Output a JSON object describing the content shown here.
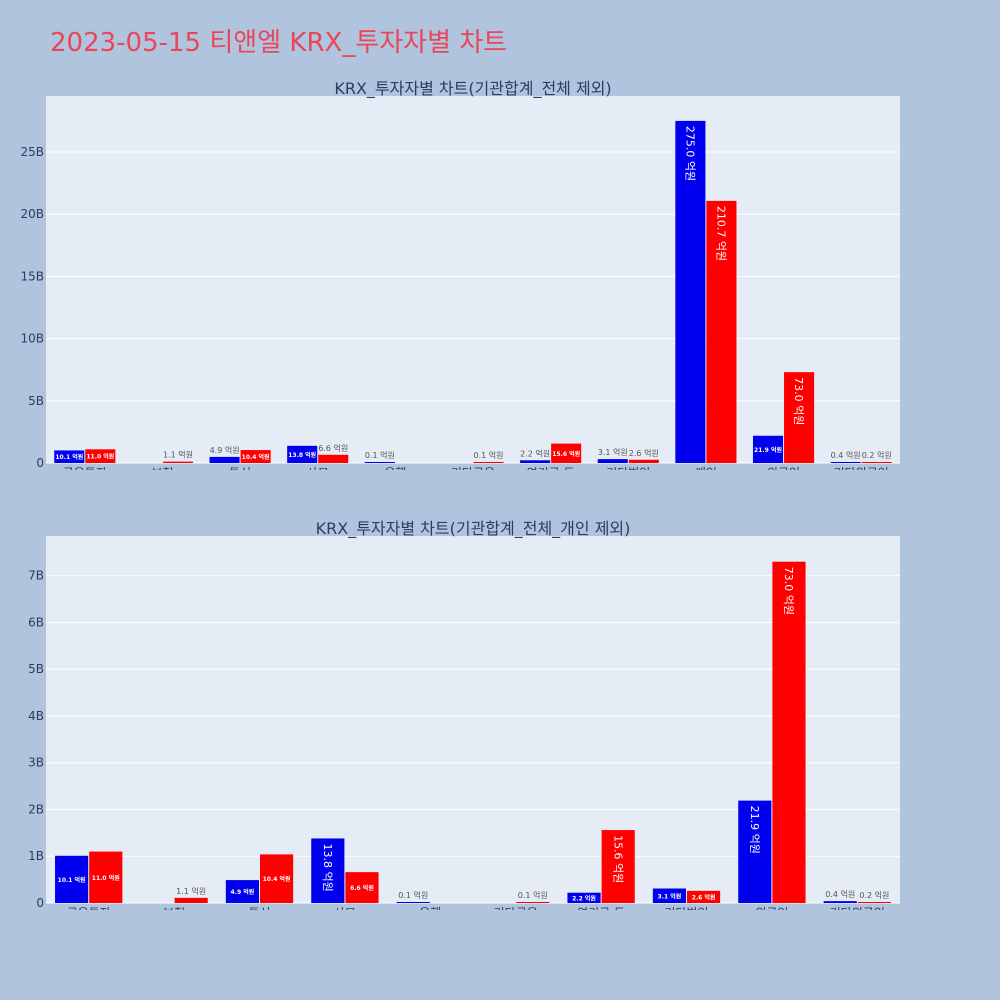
{
  "page_title": "2023-05-15 티앤엘 KRX_투자자별 차트",
  "colors": {
    "series_a": "#0000ee",
    "series_b": "#ff0000",
    "plot_bg": "#e5ecf6",
    "page_bg": "#b0c4de",
    "title": "#e8475a"
  },
  "chart_data": [
    {
      "type": "bar",
      "title": "KRX_투자자별 차트(기관합계_전체 제외)",
      "categories": [
        "금융투자",
        "보험",
        "투신",
        "사모",
        "은행",
        "기타금융",
        "연기금 등",
        "기타법인",
        "개인",
        "외국인",
        "기타외국인"
      ],
      "series": [
        {
          "values": [
            1010000000,
            0,
            490000000,
            1380000000,
            10000000,
            0,
            220000000,
            310000000,
            27500000000,
            2190000000,
            40000000
          ],
          "labels": [
            "10.1 억원",
            "",
            "4.9 억원",
            "13.8 억원",
            "0.1 억원",
            "",
            "2.2 억원",
            "3.1 억원",
            "275.0 억원",
            "21.9 억원",
            "0.4 억원"
          ]
        },
        {
          "values": [
            1100000000,
            110000000,
            1040000000,
            660000000,
            0,
            10000000,
            1560000000,
            260000000,
            21070000000,
            7300000000,
            20000000
          ],
          "labels": [
            "11.0 억원",
            "1.1 억원",
            "10.4 억원",
            "6.6 억원",
            "",
            "0.1 억원",
            "15.6 억원",
            "2.6 억원",
            "210.7 억원",
            "73.0 억원",
            "0.2 억원"
          ]
        }
      ],
      "ylim": [
        0,
        29500000000
      ],
      "yticks": [
        0,
        5000000000,
        10000000000,
        15000000000,
        20000000000,
        25000000000
      ],
      "ytick_labels": [
        "0",
        "5B",
        "10B",
        "15B",
        "20B",
        "25B"
      ],
      "grid": true
    },
    {
      "type": "bar",
      "title": "KRX_투자자별 차트(기관합계_전체_개인 제외)",
      "categories": [
        "금융투자",
        "보험",
        "투신",
        "사모",
        "은행",
        "기타금융",
        "연기금 등",
        "기타법인",
        "외국인",
        "기타외국인"
      ],
      "series": [
        {
          "values": [
            1010000000,
            0,
            490000000,
            1380000000,
            10000000,
            0,
            220000000,
            310000000,
            2190000000,
            40000000
          ],
          "labels": [
            "10.1 억원",
            "",
            "4.9 억원",
            "13.8 억원",
            "0.1 억원",
            "",
            "2.2 억원",
            "3.1 억원",
            "21.9 억원",
            "0.4 억원"
          ]
        },
        {
          "values": [
            1100000000,
            110000000,
            1040000000,
            660000000,
            0,
            10000000,
            1560000000,
            260000000,
            7300000000,
            20000000
          ],
          "labels": [
            "11.0 억원",
            "1.1 억원",
            "10.4 억원",
            "6.6 억원",
            "",
            "0.1 억원",
            "15.6 억원",
            "2.6 억원",
            "73.0 억원",
            "0.2 억원"
          ]
        }
      ],
      "ylim": [
        0,
        7850000000
      ],
      "yticks": [
        0,
        1000000000,
        2000000000,
        3000000000,
        4000000000,
        5000000000,
        6000000000,
        7000000000
      ],
      "ytick_labels": [
        "0",
        "1B",
        "2B",
        "3B",
        "4B",
        "5B",
        "6B",
        "7B"
      ],
      "grid": true
    }
  ]
}
